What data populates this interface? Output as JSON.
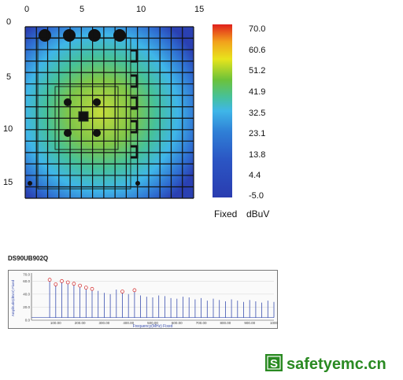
{
  "heatmap": {
    "x_ticks": [
      "0",
      "5",
      "10",
      "15"
    ],
    "y_ticks": [
      "0",
      "5",
      "10",
      "15"
    ]
  },
  "scale": {
    "values": [
      "70.0",
      "60.6",
      "51.2",
      "41.9",
      "32.5",
      "23.1",
      "13.8",
      "4.4",
      "-5.0"
    ],
    "mode_label": "Fixed",
    "unit_label": "dBuV"
  },
  "spectrum": {
    "title": "DS90UB902Q",
    "ylabel": "Amplitude(dBuV) Fixed",
    "xlabel": "Frequency(MHz) Fixed",
    "y_ticks": [
      "70.0",
      "60.0",
      "40.0",
      "20.0",
      "0.0"
    ],
    "x_ticks": [
      "100.00",
      "200.00",
      "300.00",
      "400.00",
      "500.00",
      "600.00",
      "700.00",
      "800.00",
      "900.00",
      "1000"
    ]
  },
  "chart_data": {
    "type": "bar",
    "title": "DS90UB902Q",
    "xlabel": "Frequency(MHz) Fixed",
    "ylabel": "Amplitude(dBuV) Fixed",
    "ylim": [
      0,
      70
    ],
    "xlim": [
      0,
      1000
    ],
    "x": [
      75,
      100,
      125,
      150,
      175,
      200,
      225,
      250,
      275,
      300,
      325,
      350,
      375,
      400,
      425,
      450,
      475,
      500,
      525,
      550,
      575,
      600,
      625,
      650,
      675,
      700,
      725,
      750,
      775,
      800,
      825,
      850,
      875,
      900,
      925,
      950,
      975,
      1000
    ],
    "values": [
      62,
      55,
      60,
      58,
      56,
      53,
      50,
      48,
      45,
      42,
      40,
      47,
      44,
      40,
      46,
      38,
      36,
      35,
      38,
      37,
      34,
      33,
      36,
      35,
      32,
      34,
      30,
      33,
      31,
      29,
      32,
      30,
      28,
      31,
      29,
      27,
      30,
      28
    ],
    "peaks_marked": [
      75,
      100,
      125,
      150,
      175,
      200,
      225,
      250,
      375,
      425
    ]
  },
  "logo": {
    "text": "safetyemc.cn",
    "icon": "S"
  },
  "colors": {
    "scale_top": "#e0201c",
    "scale_bottom": "#2a3cb0",
    "logo_green": "#2a8a22",
    "trace": "#3a4fb0",
    "peak_marker": "#d02020"
  }
}
